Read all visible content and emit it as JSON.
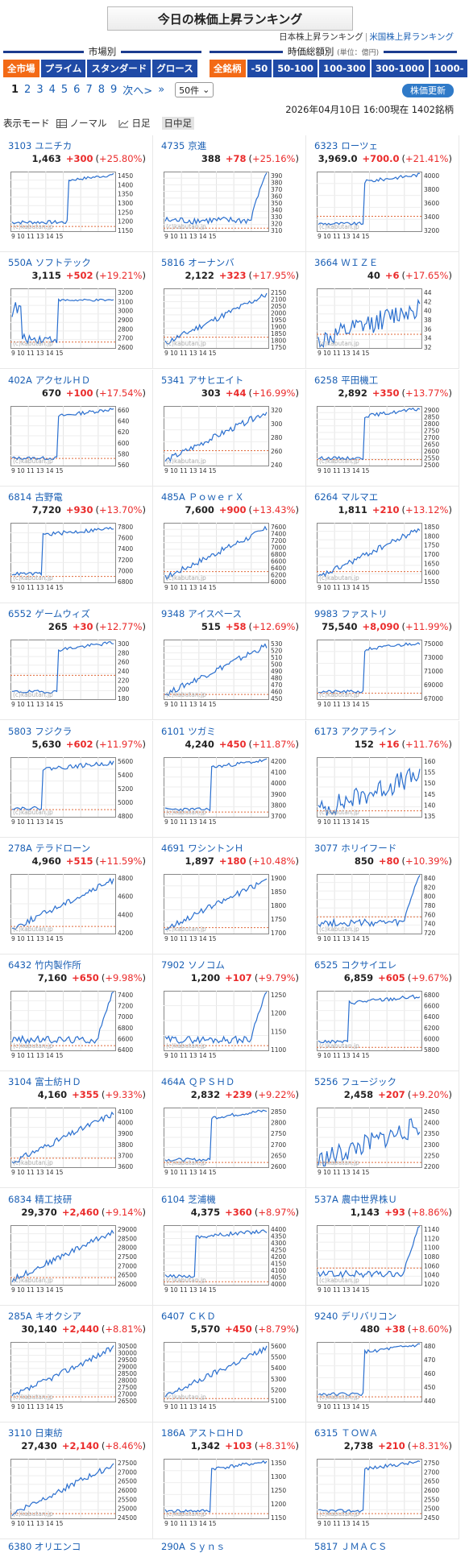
{
  "page_title": "今日の株価上昇ランキング",
  "rank_links": {
    "current": "日本株上昇ランキング",
    "other": "米国株上昇ランキング"
  },
  "market_section": {
    "label": "市場別",
    "buttons": [
      "全市場",
      "プライム",
      "スタンダード",
      "グロース"
    ],
    "selected": 0
  },
  "cap_section": {
    "label": "時価総額別",
    "unit": "(単位：億円)",
    "buttons": [
      "全銘柄",
      "-50",
      "50-100",
      "100-300",
      "300-1000",
      "1000-"
    ],
    "selected": 0
  },
  "pager": {
    "current": "1",
    "pages": [
      "2",
      "3",
      "4",
      "5",
      "6",
      "7",
      "8",
      "9"
    ],
    "next": "次へ>",
    "last": "»",
    "per_page": "50件"
  },
  "update_button": "株価更新",
  "datetime": "2026年04月10日 16:00現在 1402銘柄",
  "display_mode": {
    "label": "表示モード",
    "options": [
      "ノーマル",
      "日足",
      "日中足"
    ],
    "selected": 2
  },
  "chart_axis_labels": "9 10 11 13 14 15",
  "watermark": "(c)kabutan.jp",
  "stocks": [
    {
      "code": "3103",
      "name": "ユニチカ",
      "price": "1,463",
      "change": "+300",
      "pct": "+25.80%",
      "ticks": [
        "1450",
        "1400",
        "1350",
        "1300",
        "1250",
        "1200",
        "1150"
      ],
      "pattern": "jump-late",
      "ref": 0.92
    },
    {
      "code": "4735",
      "name": "京進",
      "price": "388",
      "change": "+78",
      "pct": "+25.16%",
      "ticks": [
        "390",
        "380",
        "370",
        "360",
        "350",
        "340",
        "330",
        "320",
        "310"
      ],
      "pattern": "spike-end",
      "ref": 0.95
    },
    {
      "code": "6323",
      "name": "ローツェ",
      "price": "3,969.0",
      "change": "+700.0",
      "pct": "+21.41%",
      "ticks": [
        "4000",
        "3800",
        "3600",
        "3400",
        "3200"
      ],
      "pattern": "jump-mid",
      "ref": 0.75
    },
    {
      "code": "550A",
      "name": "ソフトテック",
      "price": "3,115",
      "change": "+502",
      "pct": "+19.21%",
      "ticks": [
        "3200",
        "3100",
        "3000",
        "2900",
        "2800",
        "2700",
        "2600"
      ],
      "pattern": "dip-rise",
      "ref": 0.9
    },
    {
      "code": "5816",
      "name": "オーナンバ",
      "price": "2,122",
      "change": "+323",
      "pct": "+17.95%",
      "ticks": [
        "2150",
        "2100",
        "2050",
        "2000",
        "1950",
        "1900",
        "1850",
        "1800",
        "1750"
      ],
      "pattern": "steady-rise",
      "ref": 0.82
    },
    {
      "code": "3664",
      "name": "ＷＩＺＥ",
      "price": "40",
      "change": "+6",
      "pct": "+17.65%",
      "ticks": [
        "44",
        "42",
        "40",
        "38",
        "36",
        "34",
        "32"
      ],
      "pattern": "choppy-rise",
      "ref": 0.77
    },
    {
      "code": "402A",
      "name": "アクセルＨＤ",
      "price": "670",
      "change": "+100",
      "pct": "+17.54%",
      "ticks": [
        "660",
        "640",
        "620",
        "600",
        "580",
        "560"
      ],
      "pattern": "jump-mid",
      "ref": 0.88
    },
    {
      "code": "5341",
      "name": "アサヒエイト",
      "price": "303",
      "change": "+44",
      "pct": "+16.99%",
      "ticks": [
        "320",
        "300",
        "280",
        "260",
        "240"
      ],
      "pattern": "steady-rise",
      "ref": 0.75
    },
    {
      "code": "6258",
      "name": "平田機工",
      "price": "2,892",
      "change": "+350",
      "pct": "+13.77%",
      "ticks": [
        "2900",
        "2850",
        "2800",
        "2750",
        "2700",
        "2650",
        "2600",
        "2550",
        "2500"
      ],
      "pattern": "jump-mid",
      "ref": 0.9
    },
    {
      "code": "6814",
      "name": "古野電",
      "price": "7,720",
      "change": "+930",
      "pct": "+13.70%",
      "ticks": [
        "7800",
        "7600",
        "7400",
        "7200",
        "7000",
        "6800"
      ],
      "pattern": "jump-early",
      "ref": 0.9
    },
    {
      "code": "485A",
      "name": "ＰｏｗｅｒＸ",
      "price": "7,600",
      "change": "+900",
      "pct": "+13.43%",
      "ticks": [
        "7600",
        "7400",
        "7200",
        "7000",
        "6800",
        "6600",
        "6400",
        "6200",
        "6000"
      ],
      "pattern": "steady-rise",
      "ref": 0.82
    },
    {
      "code": "6264",
      "name": "マルマエ",
      "price": "1,811",
      "change": "+210",
      "pct": "+13.12%",
      "ticks": [
        "1850",
        "1800",
        "1750",
        "1700",
        "1650",
        "1600",
        "1550"
      ],
      "pattern": "steady-rise",
      "ref": 0.82
    },
    {
      "code": "6552",
      "name": "ゲームウィズ",
      "price": "265",
      "change": "+30",
      "pct": "+12.77%",
      "ticks": [
        "300",
        "280",
        "260",
        "240",
        "220",
        "200",
        "180"
      ],
      "pattern": "jump-mid",
      "ref": 0.6
    },
    {
      "code": "9348",
      "name": "アイスペース",
      "price": "515",
      "change": "+58",
      "pct": "+12.69%",
      "ticks": [
        "530",
        "520",
        "510",
        "500",
        "490",
        "480",
        "470",
        "460",
        "450"
      ],
      "pattern": "steady-rise",
      "ref": 0.92
    },
    {
      "code": "9983",
      "name": "ファストリ",
      "price": "75,540",
      "change": "+8,090",
      "pct": "+11.99%",
      "ticks": [
        "75000",
        "73000",
        "71000",
        "69000",
        "67000"
      ],
      "pattern": "jump-mid",
      "ref": 0.9
    },
    {
      "code": "5803",
      "name": "フジクラ",
      "price": "5,630",
      "change": "+602",
      "pct": "+11.97%",
      "ticks": [
        "5600",
        "5400",
        "5200",
        "5000",
        "4800"
      ],
      "pattern": "jump-early",
      "ref": 0.88
    },
    {
      "code": "6101",
      "name": "ツガミ",
      "price": "4,240",
      "change": "+450",
      "pct": "+11.87%",
      "ticks": [
        "4200",
        "4100",
        "4000",
        "3900",
        "3800",
        "3700"
      ],
      "pattern": "jump-mid",
      "ref": 0.92
    },
    {
      "code": "6173",
      "name": "アクアライン",
      "price": "152",
      "change": "+16",
      "pct": "+11.76%",
      "ticks": [
        "160",
        "155",
        "150",
        "145",
        "140",
        "135"
      ],
      "pattern": "choppy-rise",
      "ref": 0.9
    },
    {
      "code": "278A",
      "name": "テラドローン",
      "price": "4,960",
      "change": "+515",
      "pct": "+11.59%",
      "ticks": [
        "4800",
        "4600",
        "4400",
        "4200"
      ],
      "pattern": "steady-rise",
      "ref": 0.88
    },
    {
      "code": "4691",
      "name": "ワシントンＨ",
      "price": "1,897",
      "change": "+180",
      "pct": "+10.48%",
      "ticks": [
        "1900",
        "1850",
        "1800",
        "1750",
        "1700"
      ],
      "pattern": "steady-rise",
      "ref": 0.9
    },
    {
      "code": "3077",
      "name": "ホリイフード",
      "price": "850",
      "change": "+80",
      "pct": "+10.39%",
      "ticks": [
        "840",
        "820",
        "800",
        "780",
        "760",
        "740",
        "720"
      ],
      "pattern": "spike-end",
      "ref": 0.72
    },
    {
      "code": "6432",
      "name": "竹内製作所",
      "price": "7,160",
      "change": "+650",
      "pct": "+9.98%",
      "ticks": [
        "7400",
        "7200",
        "7000",
        "6800",
        "6600",
        "6400"
      ],
      "pattern": "spike-end",
      "ref": 0.92
    },
    {
      "code": "7902",
      "name": "ソノコム",
      "price": "1,200",
      "change": "+107",
      "pct": "+9.79%",
      "ticks": [
        "1250",
        "1200",
        "1150",
        "1100"
      ],
      "pattern": "spike-end",
      "ref": 0.92
    },
    {
      "code": "6525",
      "name": "コクサイエレ",
      "price": "6,859",
      "change": "+605",
      "pct": "+9.67%",
      "ticks": [
        "6800",
        "6600",
        "6400",
        "6200",
        "6000",
        "5800"
      ],
      "pattern": "jump-early",
      "ref": 0.95
    },
    {
      "code": "3104",
      "name": "富士紡ＨＤ",
      "price": "4,160",
      "change": "+355",
      "pct": "+9.33%",
      "ticks": [
        "4100",
        "4000",
        "3900",
        "3800",
        "3700",
        "3600"
      ],
      "pattern": "steady-rise",
      "ref": 0.85
    },
    {
      "code": "464A",
      "name": "ＱＰＳＨＤ",
      "price": "2,832",
      "change": "+239",
      "pct": "+9.22%",
      "ticks": [
        "2850",
        "2800",
        "2750",
        "2700",
        "2650",
        "2600"
      ],
      "pattern": "jump-mid",
      "ref": 0.92
    },
    {
      "code": "5256",
      "name": "フュージック",
      "price": "2,458",
      "change": "+207",
      "pct": "+9.20%",
      "ticks": [
        "2450",
        "2400",
        "2350",
        "2300",
        "2250",
        "2200"
      ],
      "pattern": "choppy-rise",
      "ref": 0.92
    },
    {
      "code": "6834",
      "name": "精工技研",
      "price": "29,370",
      "change": "+2,460",
      "pct": "+9.14%",
      "ticks": [
        "29000",
        "28500",
        "28000",
        "27500",
        "27000",
        "26500",
        "26000"
      ],
      "pattern": "steady-rise",
      "ref": 0.88
    },
    {
      "code": "6104",
      "name": "芝浦機",
      "price": "4,375",
      "change": "+360",
      "pct": "+8.97%",
      "ticks": [
        "4400",
        "4350",
        "4300",
        "4250",
        "4200",
        "4150",
        "4100",
        "4050",
        "4000"
      ],
      "pattern": "jump-early",
      "ref": 0.95
    },
    {
      "code": "537A",
      "name": "農中世界株Ｕ",
      "price": "1,143",
      "change": "+93",
      "pct": "+8.86%",
      "ticks": [
        "1140",
        "1120",
        "1100",
        "1080",
        "1060",
        "1040",
        "1020"
      ],
      "pattern": "spike-end",
      "ref": 0.72
    },
    {
      "code": "285A",
      "name": "キオクシア",
      "price": "30,140",
      "change": "+2,440",
      "pct": "+8.81%",
      "ticks": [
        "30500",
        "30000",
        "29500",
        "29000",
        "28500",
        "28000",
        "27500",
        "27000",
        "26500"
      ],
      "pattern": "steady-rise",
      "ref": 0.92
    },
    {
      "code": "6407",
      "name": "ＣＫＤ",
      "price": "5,570",
      "change": "+450",
      "pct": "+8.79%",
      "ticks": [
        "5600",
        "5500",
        "5400",
        "5300",
        "5200",
        "5100"
      ],
      "pattern": "steady-rise",
      "ref": 0.95
    },
    {
      "code": "9240",
      "name": "デリバリコン",
      "price": "480",
      "change": "+38",
      "pct": "+8.60%",
      "ticks": [
        "480",
        "470",
        "460",
        "450",
        "440"
      ],
      "pattern": "jump-mid",
      "ref": 0.92
    },
    {
      "code": "3110",
      "name": "日東紡",
      "price": "27,430",
      "change": "+2,140",
      "pct": "+8.46%",
      "ticks": [
        "27500",
        "27000",
        "26500",
        "26000",
        "25500",
        "25000",
        "24500"
      ],
      "pattern": "steady-rise",
      "ref": 0.92
    },
    {
      "code": "186A",
      "name": "アストロＨＤ",
      "price": "1,342",
      "change": "+103",
      "pct": "+8.31%",
      "ticks": [
        "1350",
        "1300",
        "1250",
        "1200",
        "1150"
      ],
      "pattern": "jump-mid",
      "ref": 0.92
    },
    {
      "code": "6315",
      "name": "ＴＯＷＡ",
      "price": "2,738",
      "change": "+210",
      "pct": "+8.31%",
      "ticks": [
        "2750",
        "2700",
        "2650",
        "2600",
        "2550",
        "2500",
        "2450"
      ],
      "pattern": "jump-mid",
      "ref": 0.92
    }
  ],
  "partial_row": [
    {
      "code": "6380",
      "name": "オリエンコ"
    },
    {
      "code": "290A",
      "name": "Ｓｙｎｓ"
    },
    {
      "code": "5817",
      "name": "ＪＭＡＣＳ"
    }
  ]
}
